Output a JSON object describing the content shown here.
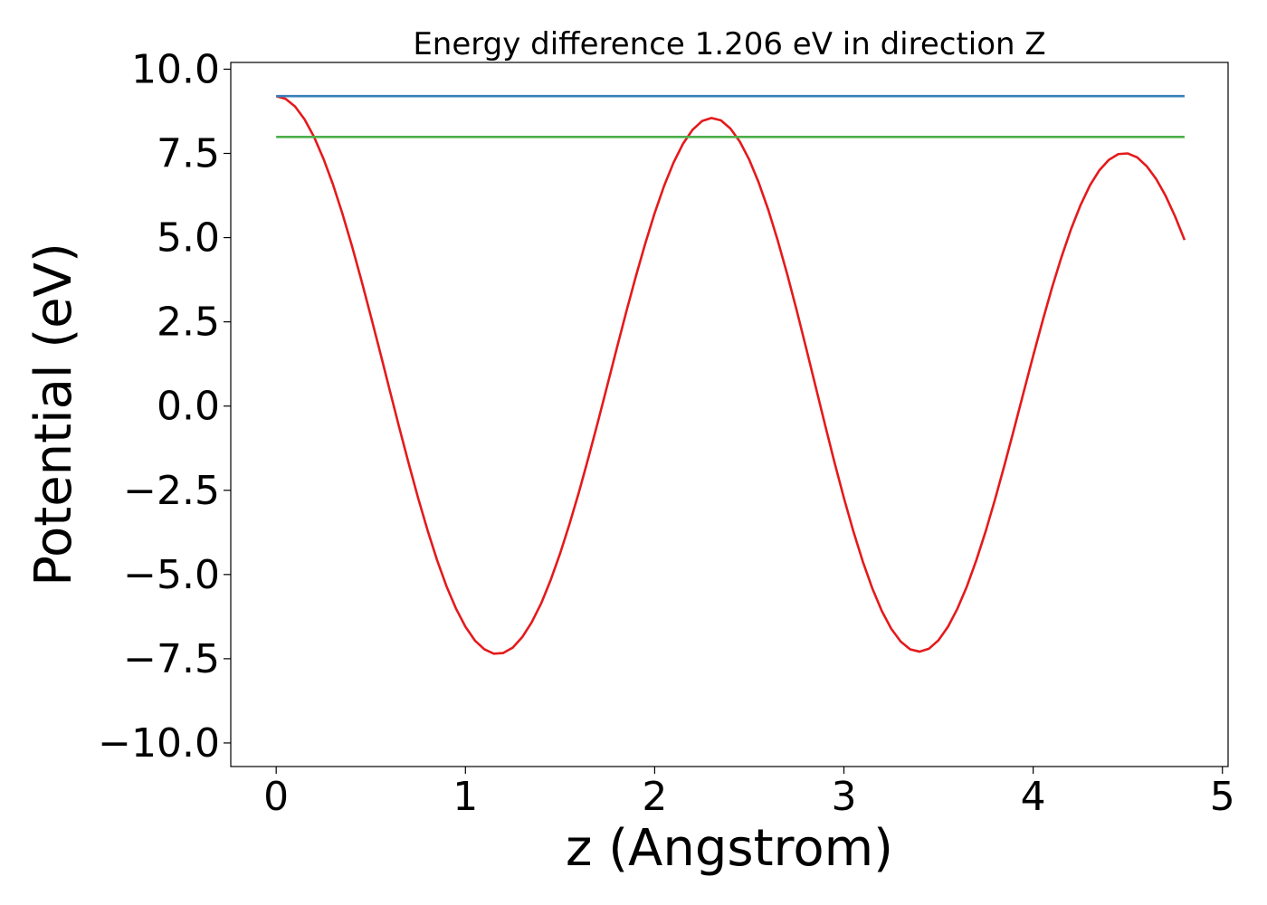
{
  "chart_data": {
    "type": "line",
    "title": "Energy difference 1.206 eV in direction Z",
    "xlabel": "z (Angstrom)",
    "ylabel": "Potential (eV)",
    "xlim": [
      -0.24,
      5.03
    ],
    "ylim": [
      -10.7,
      10.2
    ],
    "xticks": [
      0,
      1,
      2,
      3,
      4,
      5
    ],
    "xtick_labels": [
      "0",
      "1",
      "2",
      "3",
      "4",
      "5"
    ],
    "yticks": [
      10.0,
      7.5,
      5.0,
      2.5,
      0.0,
      -2.5,
      -5.0,
      -7.5,
      -10.0
    ],
    "ytick_labels": [
      "10.0",
      "7.5",
      "5.0",
      "2.5",
      "0.0",
      "−2.5",
      "−5.0",
      "−7.5",
      "−10.0"
    ],
    "grid": false,
    "legend": "none",
    "colors": {
      "potential": "#e41a1c",
      "maximum": "#377eb8",
      "reference": "#4daf4a"
    },
    "series": [
      {
        "x": [
          0.0,
          0.05,
          0.1,
          0.15,
          0.2,
          0.25,
          0.3,
          0.35,
          0.4,
          0.45,
          0.5,
          0.55,
          0.6,
          0.65,
          0.7,
          0.75,
          0.8,
          0.85,
          0.9,
          0.95,
          1.0,
          1.05,
          1.1,
          1.15,
          1.2,
          1.25,
          1.3,
          1.35,
          1.4,
          1.45,
          1.5,
          1.55,
          1.6,
          1.65,
          1.7,
          1.75,
          1.8,
          1.85,
          1.9,
          1.95,
          2.0,
          2.05,
          2.1,
          2.15,
          2.2,
          2.25,
          2.3,
          2.35,
          2.4,
          2.45,
          2.5,
          2.55,
          2.6,
          2.65,
          2.7,
          2.75,
          2.8,
          2.85,
          2.9,
          2.95,
          3.0,
          3.05,
          3.1,
          3.15,
          3.2,
          3.25,
          3.3,
          3.35,
          3.4,
          3.45,
          3.5,
          3.55,
          3.6,
          3.65,
          3.7,
          3.75,
          3.8,
          3.85,
          3.9,
          3.95,
          4.0,
          4.05,
          4.1,
          4.15,
          4.2,
          4.25,
          4.3,
          4.35,
          4.4,
          4.45,
          4.5,
          4.55,
          4.6,
          4.65,
          4.7,
          4.75,
          4.8
        ],
        "y": [
          9.2,
          9.12,
          8.89,
          8.51,
          7.99,
          7.34,
          6.58,
          5.71,
          4.76,
          3.74,
          2.67,
          1.58,
          0.47,
          -0.63,
          -1.7,
          -2.73,
          -3.69,
          -4.57,
          -5.35,
          -6.01,
          -6.55,
          -6.96,
          -7.22,
          -7.35,
          -7.33,
          -7.17,
          -6.86,
          -6.42,
          -5.86,
          -5.17,
          -4.38,
          -3.5,
          -2.55,
          -1.53,
          -0.47,
          0.62,
          1.72,
          2.8,
          3.84,
          4.82,
          5.73,
          6.54,
          7.23,
          7.79,
          8.2,
          8.46,
          8.55,
          8.48,
          8.24,
          7.85,
          7.31,
          6.63,
          5.83,
          4.92,
          3.92,
          2.85,
          1.73,
          0.59,
          -0.55,
          -1.67,
          -2.73,
          -3.72,
          -4.62,
          -5.41,
          -6.08,
          -6.61,
          -6.99,
          -7.22,
          -7.29,
          -7.2,
          -6.95,
          -6.55,
          -6.01,
          -5.35,
          -4.57,
          -3.7,
          -2.74,
          -1.72,
          -0.66,
          0.42,
          1.49,
          2.53,
          3.52,
          4.43,
          5.25,
          5.96,
          6.55,
          7.0,
          7.31,
          7.48,
          7.5,
          7.38,
          7.12,
          6.74,
          6.24,
          5.63,
          4.93
        ]
      },
      {
        "x": [
          0.0,
          4.8
        ],
        "y": [
          9.2,
          9.2
        ]
      },
      {
        "x": [
          0.0,
          4.8
        ],
        "y": [
          7.99,
          7.99
        ]
      }
    ]
  }
}
